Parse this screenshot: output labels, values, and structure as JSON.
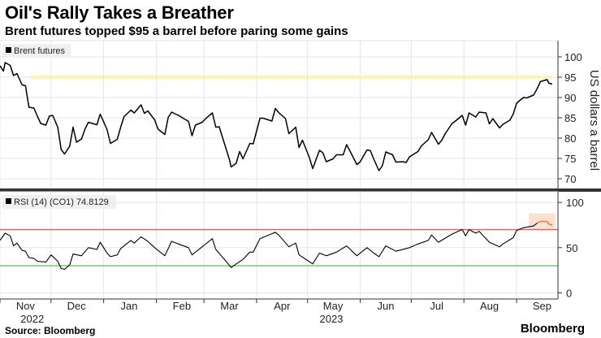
{
  "header": {
    "title": "Oil's Rally Takes a Breather",
    "subtitle": "Brent futures topped $95 a barrel before paring some gains"
  },
  "footer": {
    "source": "Source: Bloomberg",
    "brand": "Bloomberg"
  },
  "colors": {
    "line": "#000000",
    "upper_band": "#e05c5c",
    "lower_band": "#3cc23c",
    "overbought_fill": "#f5b08a",
    "highlight_band": "#fff3b0",
    "grid": "#e5e5e5"
  },
  "chart_data": [
    {
      "type": "line",
      "name": "price",
      "legend": "Brent futures",
      "ylabel": "US dollars a barrel",
      "ylim": [
        68,
        103
      ],
      "yticks": [
        70,
        75,
        80,
        85,
        90,
        95,
        100
      ],
      "x_axis": "time",
      "x_range": [
        "2022-11-01",
        "2023-09-22"
      ],
      "highlight_level": 95,
      "legend_position": "top-left",
      "grid": true,
      "points": [
        [
          "2022-11-01",
          97.8
        ],
        [
          "2022-11-03",
          96.5
        ],
        [
          "2022-11-04",
          98.6
        ],
        [
          "2022-11-07",
          97.9
        ],
        [
          "2022-11-09",
          95.4
        ],
        [
          "2022-11-11",
          95.9
        ],
        [
          "2022-11-14",
          93.1
        ],
        [
          "2022-11-16",
          92.9
        ],
        [
          "2022-11-18",
          87.6
        ],
        [
          "2022-11-21",
          87.4
        ],
        [
          "2022-11-23",
          85.4
        ],
        [
          "2022-11-25",
          83.6
        ],
        [
          "2022-11-28",
          83.2
        ],
        [
          "2022-11-30",
          85.4
        ],
        [
          "2022-12-02",
          85.6
        ],
        [
          "2022-12-05",
          82.7
        ],
        [
          "2022-12-07",
          77.2
        ],
        [
          "2022-12-09",
          76.1
        ],
        [
          "2022-12-12",
          78.0
        ],
        [
          "2022-12-14",
          82.7
        ],
        [
          "2022-12-16",
          79.0
        ],
        [
          "2022-12-19",
          79.8
        ],
        [
          "2022-12-21",
          82.2
        ],
        [
          "2022-12-23",
          83.9
        ],
        [
          "2022-12-28",
          83.3
        ],
        [
          "2022-12-30",
          85.9
        ],
        [
          "2023-01-03",
          82.1
        ],
        [
          "2023-01-05",
          78.7
        ],
        [
          "2023-01-09",
          79.7
        ],
        [
          "2023-01-11",
          82.7
        ],
        [
          "2023-01-13",
          85.3
        ],
        [
          "2023-01-17",
          86.9
        ],
        [
          "2023-01-19",
          86.2
        ],
        [
          "2023-01-23",
          88.2
        ],
        [
          "2023-01-25",
          86.1
        ],
        [
          "2023-01-27",
          86.7
        ],
        [
          "2023-01-31",
          84.5
        ],
        [
          "2023-02-02",
          82.2
        ],
        [
          "2023-02-06",
          80.9
        ],
        [
          "2023-02-08",
          85.1
        ],
        [
          "2023-02-10",
          86.4
        ],
        [
          "2023-02-14",
          85.6
        ],
        [
          "2023-02-16",
          85.1
        ],
        [
          "2023-02-20",
          84.1
        ],
        [
          "2023-02-22",
          80.6
        ],
        [
          "2023-02-24",
          83.2
        ],
        [
          "2023-02-28",
          83.9
        ],
        [
          "2023-03-02",
          84.8
        ],
        [
          "2023-03-06",
          86.2
        ],
        [
          "2023-03-08",
          82.7
        ],
        [
          "2023-03-10",
          82.8
        ],
        [
          "2023-03-14",
          77.4
        ],
        [
          "2023-03-16",
          74.7
        ],
        [
          "2023-03-17",
          72.9
        ],
        [
          "2023-03-20",
          73.8
        ],
        [
          "2023-03-22",
          76.7
        ],
        [
          "2023-03-24",
          74.9
        ],
        [
          "2023-03-28",
          78.7
        ],
        [
          "2023-03-30",
          78.6
        ],
        [
          "2023-04-03",
          84.9
        ],
        [
          "2023-04-05",
          84.9
        ],
        [
          "2023-04-10",
          84.2
        ],
        [
          "2023-04-12",
          87.3
        ],
        [
          "2023-04-14",
          86.3
        ],
        [
          "2023-04-18",
          84.8
        ],
        [
          "2023-04-20",
          81.1
        ],
        [
          "2023-04-24",
          82.7
        ],
        [
          "2023-04-26",
          77.7
        ],
        [
          "2023-04-28",
          79.5
        ],
        [
          "2023-05-02",
          75.3
        ],
        [
          "2023-05-04",
          72.5
        ],
        [
          "2023-05-08",
          77.0
        ],
        [
          "2023-05-10",
          76.4
        ],
        [
          "2023-05-12",
          74.2
        ],
        [
          "2023-05-16",
          74.9
        ],
        [
          "2023-05-18",
          75.9
        ],
        [
          "2023-05-22",
          75.9
        ],
        [
          "2023-05-24",
          78.4
        ],
        [
          "2023-05-26",
          76.8
        ],
        [
          "2023-05-30",
          73.5
        ],
        [
          "2023-06-01",
          74.2
        ],
        [
          "2023-06-05",
          77.1
        ],
        [
          "2023-06-07",
          76.9
        ],
        [
          "2023-06-09",
          74.8
        ],
        [
          "2023-06-12",
          72.0
        ],
        [
          "2023-06-14",
          73.2
        ],
        [
          "2023-06-16",
          76.6
        ],
        [
          "2023-06-20",
          75.9
        ],
        [
          "2023-06-22",
          74.1
        ],
        [
          "2023-06-26",
          74.2
        ],
        [
          "2023-06-28",
          74.0
        ],
        [
          "2023-06-30",
          75.4
        ],
        [
          "2023-07-05",
          76.7
        ],
        [
          "2023-07-07",
          78.1
        ],
        [
          "2023-07-11",
          79.6
        ],
        [
          "2023-07-13",
          81.4
        ],
        [
          "2023-07-17",
          78.5
        ],
        [
          "2023-07-19",
          79.5
        ],
        [
          "2023-07-21",
          81.1
        ],
        [
          "2023-07-25",
          83.6
        ],
        [
          "2023-07-27",
          84.2
        ],
        [
          "2023-07-31",
          85.6
        ],
        [
          "2023-08-02",
          83.2
        ],
        [
          "2023-08-04",
          86.2
        ],
        [
          "2023-08-08",
          85.2
        ],
        [
          "2023-08-10",
          86.4
        ],
        [
          "2023-08-14",
          86.2
        ],
        [
          "2023-08-16",
          83.5
        ],
        [
          "2023-08-18",
          84.8
        ],
        [
          "2023-08-22",
          82.5
        ],
        [
          "2023-08-24",
          83.4
        ],
        [
          "2023-08-28",
          84.4
        ],
        [
          "2023-08-30",
          85.9
        ],
        [
          "2023-09-01",
          88.6
        ],
        [
          "2023-09-05",
          90.0
        ],
        [
          "2023-09-07",
          89.9
        ],
        [
          "2023-09-11",
          90.6
        ],
        [
          "2023-09-13",
          92.1
        ],
        [
          "2023-09-15",
          93.9
        ],
        [
          "2023-09-19",
          94.4
        ],
        [
          "2023-09-20",
          93.5
        ],
        [
          "2023-09-22",
          93.3
        ]
      ]
    },
    {
      "type": "line",
      "name": "rsi",
      "legend": "RSI (14) (CO1) 74.8129",
      "ylim": [
        -5,
        110
      ],
      "yticks": [
        0,
        50,
        100
      ],
      "x_axis": "time",
      "x_range": [
        "2022-11-01",
        "2023-09-22"
      ],
      "reference_lines": [
        70,
        30
      ],
      "overbought_region": [
        "2023-09-12",
        "2023-09-22"
      ],
      "legend_position": "top-left",
      "grid": true,
      "points": [
        [
          "2022-11-01",
          58
        ],
        [
          "2022-11-04",
          66
        ],
        [
          "2022-11-07",
          63
        ],
        [
          "2022-11-09",
          52
        ],
        [
          "2022-11-11",
          55
        ],
        [
          "2022-11-14",
          47
        ],
        [
          "2022-11-16",
          46
        ],
        [
          "2022-11-18",
          39
        ],
        [
          "2022-11-21",
          38
        ],
        [
          "2022-11-23",
          35
        ],
        [
          "2022-11-28",
          34
        ],
        [
          "2022-12-01",
          42
        ],
        [
          "2022-12-05",
          35
        ],
        [
          "2022-12-07",
          27
        ],
        [
          "2022-12-09",
          26
        ],
        [
          "2022-12-12",
          31
        ],
        [
          "2022-12-14",
          43
        ],
        [
          "2022-12-19",
          41
        ],
        [
          "2022-12-23",
          50
        ],
        [
          "2022-12-28",
          48
        ],
        [
          "2022-12-30",
          56
        ],
        [
          "2023-01-03",
          44
        ],
        [
          "2023-01-05",
          40
        ],
        [
          "2023-01-09",
          42
        ],
        [
          "2023-01-11",
          49
        ],
        [
          "2023-01-17",
          58
        ],
        [
          "2023-01-19",
          55
        ],
        [
          "2023-01-23",
          62
        ],
        [
          "2023-01-27",
          57
        ],
        [
          "2023-01-31",
          50
        ],
        [
          "2023-02-06",
          41
        ],
        [
          "2023-02-10",
          57
        ],
        [
          "2023-02-14",
          54
        ],
        [
          "2023-02-20",
          50
        ],
        [
          "2023-02-22",
          42
        ],
        [
          "2023-02-28",
          51
        ],
        [
          "2023-03-06",
          60
        ],
        [
          "2023-03-08",
          48
        ],
        [
          "2023-03-14",
          35
        ],
        [
          "2023-03-17",
          28
        ],
        [
          "2023-03-20",
          32
        ],
        [
          "2023-03-24",
          37
        ],
        [
          "2023-03-28",
          45
        ],
        [
          "2023-03-30",
          45
        ],
        [
          "2023-04-03",
          60
        ],
        [
          "2023-04-12",
          67
        ],
        [
          "2023-04-14",
          64
        ],
        [
          "2023-04-20",
          51
        ],
        [
          "2023-04-24",
          55
        ],
        [
          "2023-04-26",
          42
        ],
        [
          "2023-05-04",
          32
        ],
        [
          "2023-05-08",
          44
        ],
        [
          "2023-05-12",
          41
        ],
        [
          "2023-05-18",
          45
        ],
        [
          "2023-05-24",
          52
        ],
        [
          "2023-05-30",
          41
        ],
        [
          "2023-06-05",
          50
        ],
        [
          "2023-06-09",
          44
        ],
        [
          "2023-06-12",
          40
        ],
        [
          "2023-06-16",
          52
        ],
        [
          "2023-06-22",
          46
        ],
        [
          "2023-06-30",
          50
        ],
        [
          "2023-07-05",
          54
        ],
        [
          "2023-07-11",
          58
        ],
        [
          "2023-07-13",
          64
        ],
        [
          "2023-07-17",
          56
        ],
        [
          "2023-07-25",
          65
        ],
        [
          "2023-07-31",
          70
        ],
        [
          "2023-08-02",
          63
        ],
        [
          "2023-08-04",
          70
        ],
        [
          "2023-08-08",
          66
        ],
        [
          "2023-08-10",
          68
        ],
        [
          "2023-08-16",
          56
        ],
        [
          "2023-08-22",
          51
        ],
        [
          "2023-08-24",
          54
        ],
        [
          "2023-08-30",
          61
        ],
        [
          "2023-09-01",
          69
        ],
        [
          "2023-09-05",
          72
        ],
        [
          "2023-09-11",
          74
        ],
        [
          "2023-09-13",
          77
        ],
        [
          "2023-09-15",
          79
        ],
        [
          "2023-09-19",
          79
        ],
        [
          "2023-09-20",
          76
        ],
        [
          "2023-09-22",
          75
        ]
      ]
    }
  ],
  "x_axis": {
    "months": [
      {
        "label": "Nov",
        "date": "2022-11-01"
      },
      {
        "label": "Dec",
        "date": "2022-12-01"
      },
      {
        "label": "Jan",
        "date": "2023-01-01"
      },
      {
        "label": "Feb",
        "date": "2023-02-01"
      },
      {
        "label": "Mar",
        "date": "2023-03-01"
      },
      {
        "label": "Apr",
        "date": "2023-04-01"
      },
      {
        "label": "May",
        "date": "2023-05-01"
      },
      {
        "label": "Jun",
        "date": "2023-06-01"
      },
      {
        "label": "Jul",
        "date": "2023-07-01"
      },
      {
        "label": "Aug",
        "date": "2023-08-01"
      },
      {
        "label": "Sep",
        "date": "2023-09-01"
      }
    ],
    "years": [
      {
        "label": "2022",
        "date": "2022-11-20"
      },
      {
        "label": "2023",
        "date": "2023-05-15"
      }
    ]
  }
}
